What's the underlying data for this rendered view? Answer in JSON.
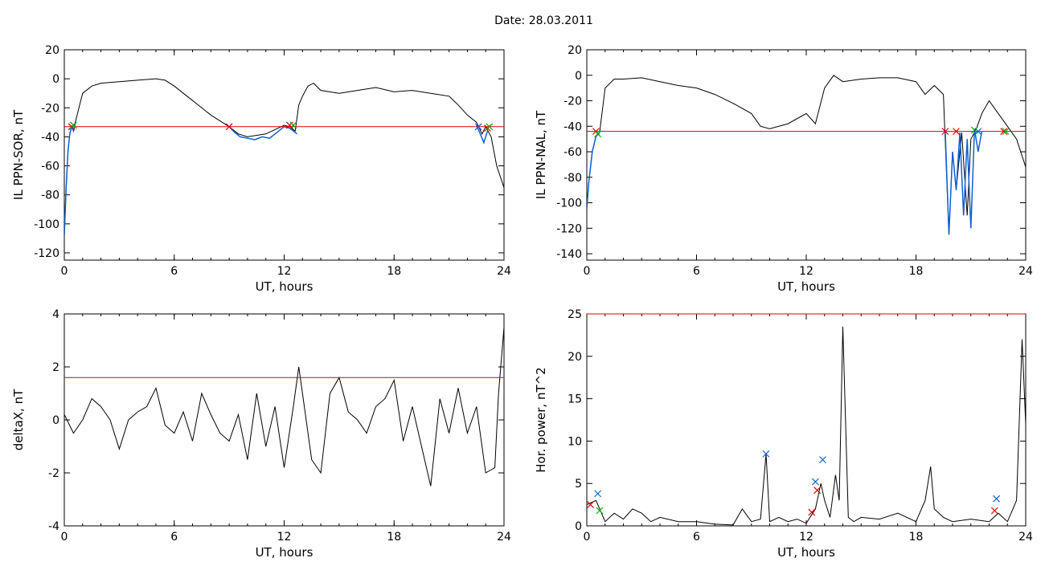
{
  "figure": {
    "title": "Date:  28.03.2011"
  },
  "chart_data": [
    {
      "type": "line",
      "xlabel": "UT, hours",
      "ylabel": "IL PPN-SOR, nT",
      "xlim": [
        0,
        24
      ],
      "ylim": [
        -125,
        20
      ],
      "xticks": [
        0,
        6,
        12,
        18,
        24
      ],
      "yticks": [
        -120,
        -100,
        -80,
        -60,
        -40,
        -20,
        0,
        20
      ],
      "threshold": -33,
      "colors": {
        "line": "#000000",
        "highlight": "#1060d0",
        "threshold": "#e00000"
      },
      "series": [
        {
          "x": [
            0,
            0.1,
            0.2,
            0.3,
            0.4,
            0.5,
            0.6,
            0.8,
            1,
            1.5,
            2,
            3,
            4,
            5,
            5.5,
            6,
            7,
            8,
            9,
            9.5,
            10,
            11,
            11.5,
            12,
            12.3,
            12.6,
            12.8,
            13,
            13.3,
            13.6,
            14,
            15,
            16,
            17,
            18,
            19,
            20,
            21,
            21.5,
            22,
            22.5,
            22.8,
            23,
            23.3,
            23.6,
            24
          ],
          "y": [
            -108,
            -75,
            -50,
            -38,
            -33,
            -36,
            -30,
            -20,
            -10,
            -5,
            -3,
            -2,
            -1,
            0,
            -1,
            -5,
            -15,
            -25,
            -33,
            -38,
            -40,
            -38,
            -35,
            -32,
            -33,
            -36,
            -18,
            -12,
            -5,
            -3,
            -8,
            -10,
            -8,
            -6,
            -9,
            -8,
            -10,
            -12,
            -18,
            -25,
            -30,
            -38,
            -33,
            -40,
            -60,
            -75
          ]
        },
        {
          "x": [
            0,
            0.1,
            0.2,
            0.3,
            0.4,
            0.5,
            0.6
          ],
          "y": [
            -108,
            -75,
            -50,
            -38,
            -33,
            -36,
            -31
          ]
        },
        {
          "x": [
            9,
            9.3,
            9.6,
            10,
            10.4,
            10.8,
            11.2,
            11.5,
            11.8,
            12,
            12.3,
            12.5,
            12.7
          ],
          "y": [
            -33,
            -37,
            -40,
            -41,
            -42,
            -40,
            -41,
            -38,
            -35,
            -33,
            -34,
            -36,
            -38
          ]
        },
        {
          "x": [
            22.5,
            22.7,
            22.9,
            23.1
          ],
          "y": [
            -32,
            -38,
            -44,
            -36
          ]
        }
      ],
      "markers": [
        {
          "x": 0.4,
          "y": -33,
          "color": "#e00000"
        },
        {
          "x": 0.5,
          "y": -32,
          "color": "#00b000"
        },
        {
          "x": 9,
          "y": -33,
          "color": "#e00000"
        },
        {
          "x": 12.3,
          "y": -32,
          "color": "#e00000"
        },
        {
          "x": 12.5,
          "y": -32,
          "color": "#00b000"
        },
        {
          "x": 22.6,
          "y": -33,
          "color": "#1060d0"
        },
        {
          "x": 23.1,
          "y": -34,
          "color": "#e00000"
        },
        {
          "x": 23.2,
          "y": -33,
          "color": "#00b000"
        }
      ]
    },
    {
      "type": "line",
      "xlabel": "UT, hours",
      "ylabel": "IL PPN-NAL, nT",
      "xlim": [
        0,
        24
      ],
      "ylim": [
        -145,
        20
      ],
      "xticks": [
        0,
        6,
        12,
        18,
        24
      ],
      "yticks": [
        -140,
        -120,
        -100,
        -80,
        -60,
        -40,
        -20,
        0,
        20
      ],
      "threshold": -44,
      "colors": {
        "line": "#000000",
        "highlight": "#1060d0",
        "threshold": "#e00000"
      },
      "series": [
        {
          "x": [
            0,
            0.1,
            0.3,
            0.5,
            0.7,
            1,
            1.5,
            2,
            3,
            4,
            5,
            6,
            7,
            8,
            9,
            9.5,
            10,
            11,
            12,
            12.5,
            13,
            13.5,
            14,
            15,
            16,
            17,
            18,
            18.5,
            19,
            19.5,
            19.8,
            20,
            20.2,
            20.5,
            20.8,
            21,
            21.3,
            21.6,
            22,
            22.5,
            23,
            23.5,
            24
          ],
          "y": [
            -105,
            -85,
            -60,
            -48,
            -45,
            -10,
            -3,
            -3,
            -2,
            -5,
            -8,
            -10,
            -15,
            -22,
            -30,
            -40,
            -42,
            -38,
            -30,
            -38,
            -10,
            0,
            -5,
            -3,
            -2,
            -2,
            -5,
            -15,
            -8,
            -15,
            -125,
            -60,
            -90,
            -45,
            -110,
            -50,
            -42,
            -30,
            -20,
            -30,
            -40,
            -50,
            -72
          ]
        },
        {
          "x": [
            0,
            0.1,
            0.3,
            0.5,
            0.7
          ],
          "y": [
            -105,
            -85,
            -60,
            -48,
            -45
          ]
        },
        {
          "x": [
            19.6,
            19.8,
            20,
            20.2,
            20.4,
            20.6,
            20.8,
            21,
            21.2,
            21.4,
            21.6
          ],
          "y": [
            -44,
            -125,
            -60,
            -90,
            -45,
            -110,
            -50,
            -120,
            -42,
            -60,
            -44
          ]
        }
      ],
      "markers": [
        {
          "x": 0.5,
          "y": -44,
          "color": "#e00000"
        },
        {
          "x": 0.6,
          "y": -46,
          "color": "#00b000"
        },
        {
          "x": 19.6,
          "y": -44,
          "color": "#e00000"
        },
        {
          "x": 20.2,
          "y": -44,
          "color": "#e00000"
        },
        {
          "x": 21.2,
          "y": -43,
          "color": "#00b000"
        },
        {
          "x": 21.4,
          "y": -44,
          "color": "#1060d0"
        },
        {
          "x": 22.8,
          "y": -44,
          "color": "#e00000"
        },
        {
          "x": 22.9,
          "y": -44,
          "color": "#00b000"
        }
      ]
    },
    {
      "type": "line",
      "xlabel": "UT, hours",
      "ylabel": "deltaX, nT",
      "xlim": [
        0,
        24
      ],
      "ylim": [
        -4,
        4
      ],
      "xticks": [
        0,
        6,
        12,
        18,
        24
      ],
      "yticks": [
        -4,
        -2,
        0,
        2,
        4
      ],
      "threshold": 1.6,
      "colors": {
        "line": "#000000",
        "threshold": "#e00000"
      },
      "series": [
        {
          "x": [
            0,
            0.5,
            1,
            1.5,
            2,
            2.5,
            3,
            3.5,
            4,
            4.5,
            5,
            5.5,
            6,
            6.5,
            7,
            7.5,
            8,
            8.5,
            9,
            9.5,
            10,
            10.5,
            11,
            11.5,
            12,
            12.5,
            12.8,
            13,
            13.5,
            14,
            14.5,
            15,
            15.5,
            16,
            16.5,
            17,
            17.5,
            18,
            18.5,
            19,
            19.5,
            20,
            20.5,
            21,
            21.5,
            22,
            22.5,
            23,
            23.5,
            23.7,
            24
          ],
          "y": [
            0.2,
            -0.5,
            0,
            0.8,
            0.5,
            0,
            -1.1,
            0,
            0.3,
            0.5,
            1.2,
            -0.2,
            -0.5,
            0.3,
            -0.8,
            1,
            0.2,
            -0.5,
            -0.8,
            0.2,
            -1.5,
            1,
            -1,
            0.5,
            -1.8,
            0.5,
            2,
            1,
            -1.5,
            -2,
            1,
            1.6,
            0.3,
            0,
            -0.5,
            0.5,
            0.8,
            1.5,
            -0.8,
            0.5,
            -1,
            -2.5,
            0.8,
            -0.5,
            1.2,
            -0.5,
            0.5,
            -2,
            -1.8,
            1,
            3.5
          ]
        }
      ]
    },
    {
      "type": "line",
      "xlabel": "UT, hours",
      "ylabel": "Hor. power, nT^2",
      "xlim": [
        0,
        24
      ],
      "ylim": [
        0,
        25
      ],
      "xticks": [
        0,
        6,
        12,
        18,
        24
      ],
      "yticks": [
        0,
        5,
        10,
        15,
        20,
        25
      ],
      "threshold": 25,
      "colors": {
        "line": "#000000",
        "threshold": "#e00000"
      },
      "series": [
        {
          "x": [
            0,
            0.5,
            1,
            1.5,
            2,
            2.5,
            3,
            3.5,
            4,
            5,
            6,
            7,
            8,
            8.5,
            9,
            9.5,
            9.8,
            10,
            10.5,
            11,
            11.5,
            12,
            12.5,
            12.8,
            13,
            13.3,
            13.6,
            13.8,
            14,
            14.3,
            14.6,
            15,
            16,
            17,
            18,
            18.5,
            18.8,
            19,
            19.5,
            20,
            21,
            22,
            22.5,
            23,
            23.5,
            23.8,
            24
          ],
          "y": [
            2.5,
            3,
            0.5,
            1.5,
            0.8,
            2,
            1.5,
            0.5,
            1,
            0.5,
            0.5,
            0.2,
            0.1,
            2,
            0.5,
            0.8,
            8.5,
            0.5,
            1,
            0.5,
            0.8,
            0.3,
            2,
            5,
            3,
            1,
            6,
            3,
            23.5,
            1,
            0.5,
            1,
            0.8,
            1.5,
            0.5,
            3,
            7,
            2,
            1,
            0.5,
            0.8,
            0.5,
            1.5,
            0.5,
            3,
            22,
            12
          ]
        }
      ],
      "markers": [
        {
          "x": 0.2,
          "y": 2.5,
          "color": "#e00000"
        },
        {
          "x": 0.6,
          "y": 3.8,
          "color": "#1060d0"
        },
        {
          "x": 0.7,
          "y": 1.8,
          "color": "#00b000"
        },
        {
          "x": 9.8,
          "y": 8.5,
          "color": "#1060d0"
        },
        {
          "x": 12.3,
          "y": 1.6,
          "color": "#e00000"
        },
        {
          "x": 12.5,
          "y": 5.2,
          "color": "#1060d0"
        },
        {
          "x": 12.6,
          "y": 4.2,
          "color": "#e00000"
        },
        {
          "x": 12.9,
          "y": 7.8,
          "color": "#1060d0"
        },
        {
          "x": 22.3,
          "y": 1.8,
          "color": "#e00000"
        },
        {
          "x": 22.4,
          "y": 3.2,
          "color": "#1060d0"
        }
      ]
    }
  ]
}
